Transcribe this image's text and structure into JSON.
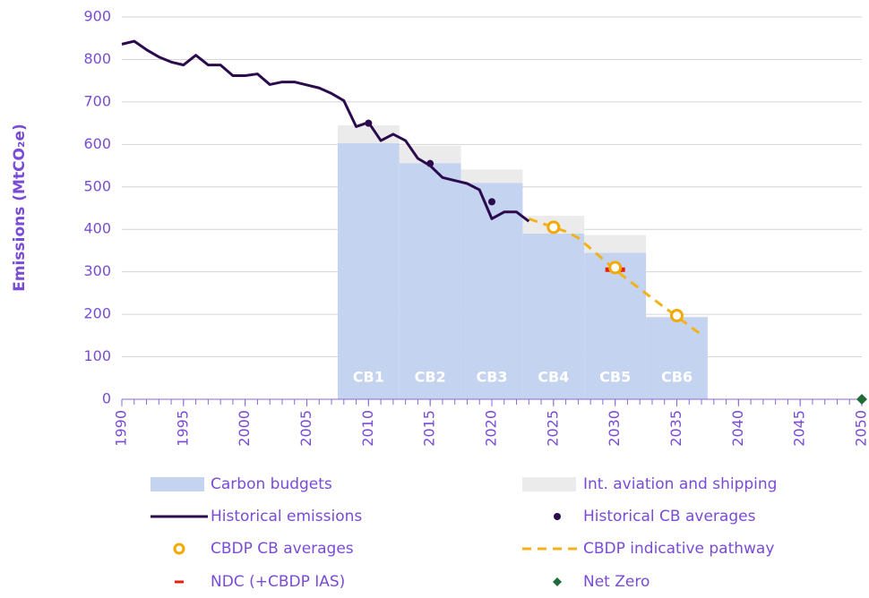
{
  "chart_data": {
    "type": "combo",
    "ylabel": "Emissions (MtCO₂e)",
    "xlim": [
      1990,
      2050
    ],
    "xticks": [
      1990,
      1995,
      2000,
      2005,
      2010,
      2015,
      2020,
      2025,
      2030,
      2035,
      2040,
      2045,
      2050
    ],
    "ylim": [
      0,
      900
    ],
    "yticks": [
      0,
      100,
      200,
      300,
      400,
      500,
      600,
      700,
      800,
      900
    ],
    "grid": true,
    "budgets": {
      "categories": [
        "CB1",
        "CB2",
        "CB3",
        "CB4",
        "CB5",
        "CB6"
      ],
      "periods": [
        [
          2008,
          2012
        ],
        [
          2013,
          2017
        ],
        [
          2018,
          2022
        ],
        [
          2023,
          2027
        ],
        [
          2028,
          2032
        ],
        [
          2033,
          2037
        ]
      ],
      "series": [
        {
          "name": "Carbon budgets",
          "color": "#c3d3f0",
          "values": [
            603,
            556,
            509,
            390,
            345,
            193
          ]
        },
        {
          "name": "Int. aviation and shipping",
          "color": "#ebebeb",
          "values": [
            42,
            41,
            32,
            42,
            42,
            2
          ]
        }
      ]
    },
    "series": [
      {
        "name": "Historical emissions",
        "type": "line",
        "color": "#2b0b4d",
        "x": [
          1990,
          1991,
          1992,
          1993,
          1994,
          1995,
          1996,
          1997,
          1998,
          1999,
          2000,
          2001,
          2002,
          2003,
          2004,
          2005,
          2006,
          2007,
          2008,
          2009,
          2010,
          2011,
          2012,
          2013,
          2014,
          2015,
          2016,
          2017,
          2018,
          2019,
          2020,
          2021,
          2022,
          2023
        ],
        "values": [
          836,
          843,
          823,
          806,
          794,
          787,
          810,
          787,
          787,
          762,
          762,
          766,
          741,
          747,
          747,
          740,
          733,
          720,
          703,
          642,
          652,
          609,
          624,
          609,
          567,
          550,
          522,
          515,
          508,
          493,
          425,
          441,
          441,
          419
        ]
      },
      {
        "name": "Historical CB averages",
        "type": "dot",
        "color": "#2b0b4d",
        "x": [
          2010,
          2015,
          2020
        ],
        "values": [
          650,
          555,
          465
        ]
      },
      {
        "name": "CBDP CB averages",
        "type": "ring",
        "color": "#f2a900",
        "x": [
          2025,
          2030,
          2035
        ],
        "values": [
          405,
          310,
          197
        ]
      },
      {
        "name": "CBDP indicative pathway",
        "type": "dashed",
        "color": "#f2b21a",
        "x": [
          2023,
          2024,
          2025,
          2026,
          2027,
          2028,
          2029,
          2030,
          2031,
          2032,
          2033,
          2034,
          2035,
          2036,
          2037
        ],
        "values": [
          425,
          415,
          405,
          395,
          380,
          355,
          330,
          305,
          282,
          260,
          238,
          216,
          195,
          173,
          152
        ]
      },
      {
        "name": "NDC (+CBDP IAS)",
        "type": "bar-marker",
        "color": "#e8200e",
        "x": [
          2030
        ],
        "values": [
          305
        ]
      },
      {
        "name": "Net Zero",
        "type": "diamond",
        "color": "#1f6b3a",
        "x": [
          2050
        ],
        "values": [
          0
        ]
      }
    ]
  }
}
